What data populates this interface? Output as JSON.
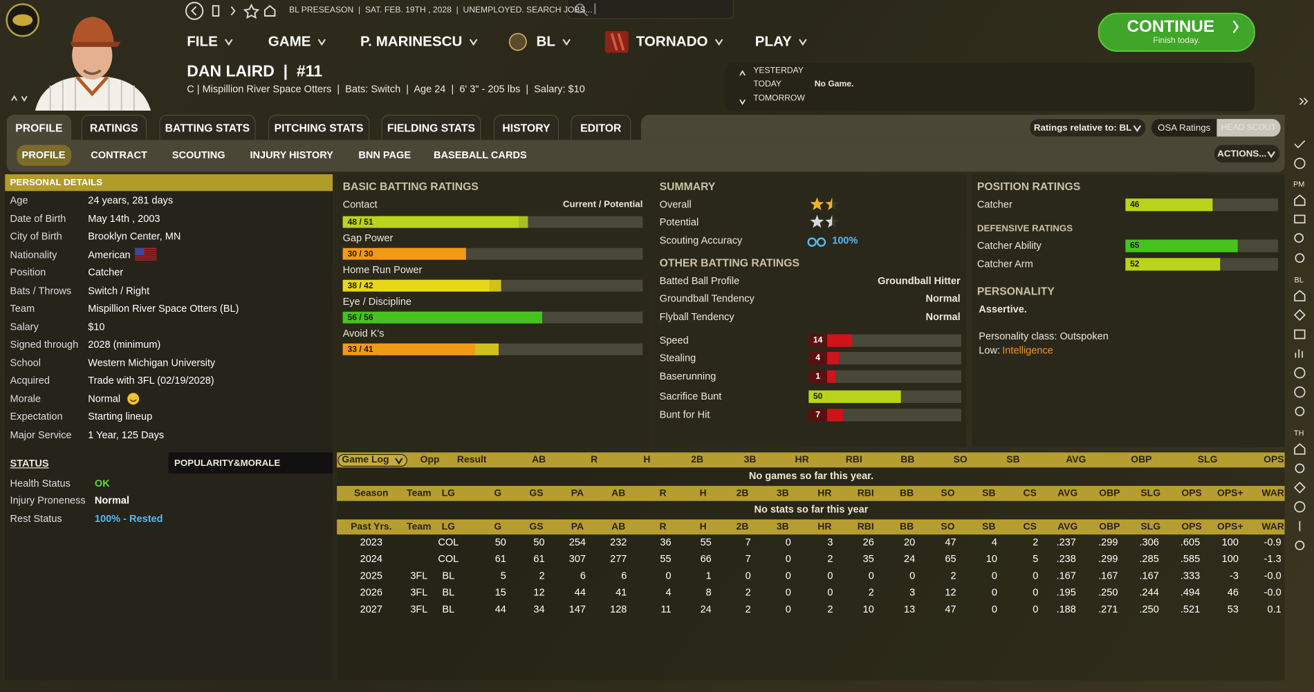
{
  "topbar": {
    "breadcrumb": "BL PRESEASON  |  SAT. FEB. 19TH , 2028  |  UNEMPLOYED. SEARCH JOBS...",
    "menus": [
      "FILE",
      "GAME",
      "P. MARINESCU",
      "BL",
      "TORNADO",
      "PLAY"
    ]
  },
  "continue": {
    "label": "CONTINUE",
    "sub": "Finish today."
  },
  "schedule": {
    "yesterday": "YESTERDAY",
    "today": "TODAY",
    "today_game": "No Game.",
    "tomorrow": "TOMORROW"
  },
  "player": {
    "name": "DAN LAIRD  |  #11",
    "info": "C | Mispillion River Space Otters  |  Bats: Switch  |  Age 24  |  6' 3\" - 205 lbs  |  Salary: $10"
  },
  "tabs": [
    "PROFILE",
    "RATINGS",
    "BATTING STATS",
    "PITCHING STATS",
    "FIELDING STATS",
    "HISTORY",
    "EDITOR"
  ],
  "subtabs": [
    "PROFILE",
    "CONTRACT",
    "SCOUTING",
    "INJURY HISTORY",
    "BNN PAGE",
    "BASEBALL CARDS"
  ],
  "controls": {
    "ratings_relative": "Ratings relative to: BL",
    "osa": "OSA Ratings",
    "head_scout": "HEAD SCOUT",
    "actions": "ACTIONS..."
  },
  "sidebar": [
    "PM",
    "BL",
    "TH"
  ],
  "personal_details": {
    "title": "PERSONAL DETAILS",
    "rows": [
      [
        "Age",
        "24 years, 281 days"
      ],
      [
        "Date of Birth",
        "May 14th , 2003"
      ],
      [
        "City of Birth",
        "Brooklyn Center, MN"
      ],
      [
        "Nationality",
        "American"
      ],
      [
        "Position",
        "Catcher"
      ],
      [
        "Bats / Throws",
        "Switch / Right"
      ],
      [
        "Team",
        "Mispillion River Space Otters (BL)"
      ],
      [
        "Salary",
        "$10"
      ],
      [
        "Signed through",
        "2028 (minimum)"
      ],
      [
        "School",
        "Western Michigan University"
      ],
      [
        "Acquired",
        "Trade with 3FL (02/19/2028)"
      ],
      [
        "Morale",
        "Normal"
      ],
      [
        "Expectation",
        "Starting lineup"
      ],
      [
        "Major Service",
        "1 Year, 125 Days"
      ]
    ]
  },
  "status": {
    "title": "STATUS",
    "popularity": "POPULARITY&MORALE",
    "rows": [
      [
        "Health Status",
        "OK"
      ],
      [
        "Injury Proneness",
        "Normal"
      ],
      [
        "Rest Status",
        "100% - Rested"
      ]
    ]
  },
  "basic_batting": {
    "title": "BASIC BATTING RATINGS",
    "legend": "Current / Potential",
    "ratings": [
      {
        "name": "Contact",
        "current": 48,
        "potential": 51,
        "label": "48 / 51"
      },
      {
        "name": "Gap Power",
        "current": 30,
        "potential": 30,
        "label": "30 / 30"
      },
      {
        "name": "Home Run Power",
        "current": 38,
        "potential": 42,
        "label": "38 / 42"
      },
      {
        "name": "Eye / Discipline",
        "current": 56,
        "potential": 56,
        "label": "56 / 56"
      },
      {
        "name": "Avoid K's",
        "current": 33,
        "potential": 41,
        "label": "33 / 41"
      }
    ]
  },
  "summary": {
    "title": "SUMMARY",
    "overall_label": "Overall",
    "overall_stars": 1.5,
    "potential_label": "Potential",
    "potential_stars": 1.5,
    "accuracy_label": "Scouting Accuracy",
    "accuracy": "100%"
  },
  "other_batting": {
    "title": "OTHER BATTING RATINGS",
    "rows": [
      [
        "Batted Ball Profile",
        "Groundball Hitter"
      ],
      [
        "Groundball Tendency",
        "Normal"
      ],
      [
        "Flyball Tendency",
        "Normal"
      ]
    ],
    "bars": [
      {
        "name": "Speed",
        "value": 14
      },
      {
        "name": "Stealing",
        "value": 4
      },
      {
        "name": "Baserunning",
        "value": 1
      },
      {
        "name": "Sacrifice Bunt",
        "value": 50
      },
      {
        "name": "Bunt for Hit",
        "value": 7
      }
    ]
  },
  "position_ratings": {
    "title": "POSITION RATINGS",
    "bars": [
      {
        "name": "Catcher",
        "value": 46
      }
    ]
  },
  "defensive_ratings": {
    "title": "DEFENSIVE RATINGS",
    "bars": [
      {
        "name": "Catcher Ability",
        "value": 65
      },
      {
        "name": "Catcher Arm",
        "value": 52
      }
    ]
  },
  "personality": {
    "title": "PERSONALITY",
    "trait": "Assertive.",
    "class": "Personality class: Outspoken",
    "low_label": "Low:",
    "low_value": "Intelligence"
  },
  "game_log": {
    "headers": [
      "Game Log",
      "Opp",
      "Result",
      "AB",
      "R",
      "H",
      "2B",
      "3B",
      "HR",
      "RBI",
      "BB",
      "SO",
      "SB",
      "AVG",
      "OBP",
      "SLG",
      "OPS"
    ],
    "empty": "No games so far this year."
  },
  "season_stats": {
    "headers": [
      "Season",
      "Team",
      "LG",
      "G",
      "GS",
      "PA",
      "AB",
      "R",
      "H",
      "2B",
      "3B",
      "HR",
      "RBI",
      "BB",
      "SO",
      "SB",
      "CS",
      "AVG",
      "OBP",
      "SLG",
      "OPS",
      "OPS+",
      "WAR"
    ],
    "empty": "No stats so far this year"
  },
  "past_stats": {
    "headers": [
      "Past Yrs.",
      "Team",
      "LG",
      "G",
      "GS",
      "PA",
      "AB",
      "R",
      "H",
      "2B",
      "3B",
      "HR",
      "RBI",
      "BB",
      "SO",
      "SB",
      "CS",
      "AVG",
      "OBP",
      "SLG",
      "OPS",
      "OPS+",
      "WAR"
    ],
    "rows": [
      [
        2023,
        null,
        "COL",
        50,
        50,
        254,
        232,
        36,
        55,
        7,
        0,
        3,
        26,
        20,
        47,
        4,
        2,
        ".237",
        ".299",
        ".306",
        ".605",
        100,
        -0.9
      ],
      [
        2024,
        null,
        "COL",
        61,
        61,
        307,
        277,
        55,
        66,
        7,
        0,
        2,
        35,
        24,
        65,
        10,
        5,
        ".238",
        ".299",
        ".285",
        ".585",
        100,
        -1.3
      ],
      [
        2025,
        "3FL",
        "BL",
        5,
        2,
        6,
        6,
        0,
        1,
        0,
        0,
        0,
        0,
        0,
        2,
        0,
        0,
        ".167",
        ".167",
        ".167",
        ".333",
        -3,
        "-0.0"
      ],
      [
        2026,
        "3FL",
        "BL",
        15,
        12,
        44,
        41,
        4,
        8,
        2,
        0,
        0,
        2,
        3,
        12,
        0,
        0,
        ".195",
        ".250",
        ".244",
        ".494",
        46,
        "-0.0"
      ],
      [
        2027,
        "3FL",
        "BL",
        44,
        34,
        147,
        128,
        11,
        24,
        2,
        0,
        2,
        10,
        13,
        47,
        0,
        0,
        ".188",
        ".271",
        ".250",
        ".521",
        53,
        0.1
      ]
    ]
  }
}
